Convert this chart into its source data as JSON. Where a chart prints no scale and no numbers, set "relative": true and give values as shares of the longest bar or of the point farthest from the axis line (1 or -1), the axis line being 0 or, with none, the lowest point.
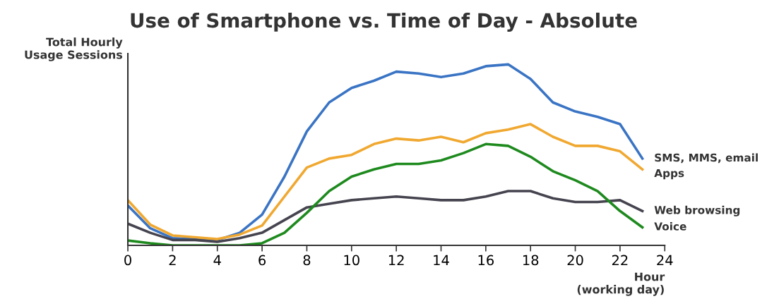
{
  "chart_data": {
    "type": "line",
    "title": "Use of Smartphone vs. Time of Day - Absolute",
    "ylabel": "Total Hourly\nUsage Sessions",
    "xlabel": "Hour\n(working day)",
    "relative": true,
    "x": [
      0,
      1,
      2,
      3,
      4,
      5,
      6,
      7,
      8,
      9,
      10,
      11,
      12,
      13,
      14,
      15,
      16,
      17,
      18,
      19,
      20,
      21,
      22,
      23
    ],
    "xlim": [
      0,
      24
    ],
    "xticks": [
      0,
      2,
      4,
      6,
      8,
      10,
      12,
      14,
      16,
      18,
      20,
      22,
      24
    ],
    "grid": false,
    "legend": false,
    "marker": "none",
    "line_style": "solid",
    "series": [
      {
        "name": "SMS, MMS, email",
        "color": "#3a74c4",
        "values": [
          0.22,
          0.095,
          0.04,
          0.035,
          0.03,
          0.07,
          0.17,
          0.38,
          0.63,
          0.79,
          0.87,
          0.91,
          0.96,
          0.95,
          0.93,
          0.95,
          0.99,
          1,
          0.92,
          0.79,
          0.74,
          0.71,
          0.67,
          0.48
        ]
      },
      {
        "name": "Apps",
        "color": "#f0a830",
        "values": [
          0.25,
          0.115,
          0.055,
          0.045,
          0.035,
          0.06,
          0.11,
          0.27,
          0.43,
          0.48,
          0.5,
          0.56,
          0.59,
          0.58,
          0.6,
          0.57,
          0.62,
          0.64,
          0.67,
          0.6,
          0.55,
          0.55,
          0.52,
          0.42
        ]
      },
      {
        "name": "Web browsing",
        "color": "#45444f",
        "values": [
          0.12,
          0.07,
          0.03,
          0.03,
          0.02,
          0.04,
          0.07,
          0.14,
          0.21,
          0.23,
          0.25,
          0.26,
          0.27,
          0.26,
          0.25,
          0.25,
          0.27,
          0.3,
          0.3,
          0.26,
          0.24,
          0.24,
          0.25,
          0.19
        ]
      },
      {
        "name": "Voice",
        "color": "#1e8a1e",
        "values": [
          0.027,
          0.012,
          0,
          0,
          0,
          0,
          0.012,
          0.07,
          0.18,
          0.3,
          0.38,
          0.42,
          0.45,
          0.45,
          0.47,
          0.51,
          0.56,
          0.55,
          0.49,
          0.41,
          0.36,
          0.3,
          0.19,
          0.1
        ]
      }
    ]
  }
}
